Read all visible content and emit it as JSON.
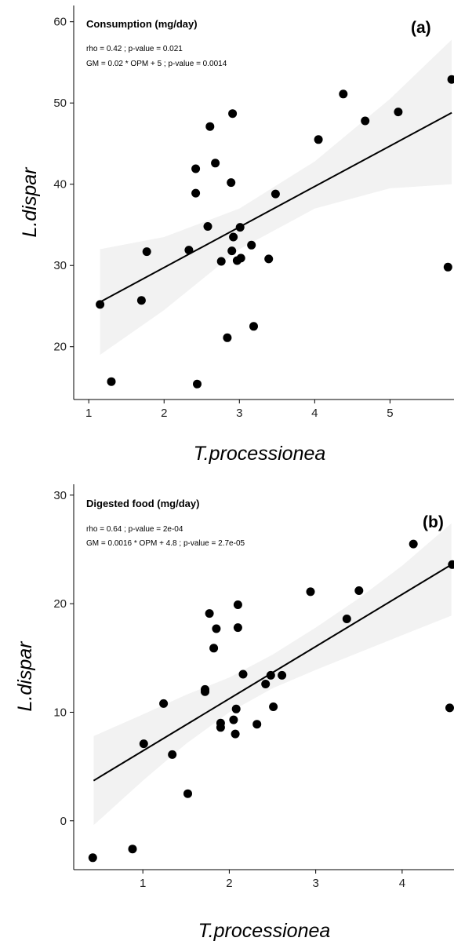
{
  "chart_data": [
    {
      "type": "scatter",
      "title": "Consumption (mg/day)",
      "annotations": [
        "rho = 0.42 ; p-value = 0.021",
        "GM = 0.02 * OPM + 5 ; p-value = 0.0014"
      ],
      "panel_tag": "(a)",
      "xlabel": "T.processionea",
      "ylabel": "L.dispar",
      "xlim": [
        0.8,
        5.85
      ],
      "ylim": [
        13.5,
        62
      ],
      "xticks": [
        1,
        2,
        3,
        4,
        5,
        6
      ],
      "yticks": [
        20,
        30,
        40,
        50,
        60
      ],
      "grid": false,
      "smooth": "linear fit with confidence band",
      "fit_line": {
        "x": [
          1.15,
          5.82
        ],
        "y": [
          25.5,
          48.8
        ]
      },
      "band": {
        "x": [
          1.15,
          2.0,
          3.0,
          4.0,
          5.0,
          5.82
        ],
        "upper": [
          32.0,
          33.5,
          37.0,
          42.8,
          50.5,
          57.8
        ],
        "lower": [
          19.0,
          24.5,
          32.0,
          37.0,
          39.5,
          40.0
        ]
      },
      "points": [
        {
          "x": 1.15,
          "y": 25.2
        },
        {
          "x": 1.3,
          "y": 15.7
        },
        {
          "x": 1.7,
          "y": 25.7
        },
        {
          "x": 1.77,
          "y": 31.7
        },
        {
          "x": 2.33,
          "y": 31.9
        },
        {
          "x": 2.42,
          "y": 41.9
        },
        {
          "x": 2.42,
          "y": 38.9
        },
        {
          "x": 2.44,
          "y": 15.4
        },
        {
          "x": 2.58,
          "y": 34.8
        },
        {
          "x": 2.61,
          "y": 47.1
        },
        {
          "x": 2.68,
          "y": 42.6
        },
        {
          "x": 2.76,
          "y": 30.5
        },
        {
          "x": 2.84,
          "y": 21.1
        },
        {
          "x": 2.89,
          "y": 40.2
        },
        {
          "x": 2.9,
          "y": 31.8
        },
        {
          "x": 2.91,
          "y": 48.7
        },
        {
          "x": 2.92,
          "y": 33.5
        },
        {
          "x": 2.97,
          "y": 30.6
        },
        {
          "x": 3.01,
          "y": 34.7
        },
        {
          "x": 3.02,
          "y": 30.9
        },
        {
          "x": 3.16,
          "y": 32.5
        },
        {
          "x": 3.19,
          "y": 22.5
        },
        {
          "x": 3.39,
          "y": 30.8
        },
        {
          "x": 3.48,
          "y": 38.8
        },
        {
          "x": 4.05,
          "y": 45.5
        },
        {
          "x": 4.38,
          "y": 51.1
        },
        {
          "x": 4.67,
          "y": 47.8
        },
        {
          "x": 5.11,
          "y": 48.9
        },
        {
          "x": 5.77,
          "y": 29.8
        },
        {
          "x": 5.82,
          "y": 52.9
        }
      ],
      "colors": {
        "points": "#000000",
        "line": "#000000",
        "band": "#f2f2f2"
      }
    },
    {
      "type": "scatter",
      "title": "Digested food (mg/day)",
      "annotations": [
        "rho = 0.64 ; p-value = 2e-04",
        "GM = 0.0016 * OPM + 4.8 ; p-value = 2.7e-05"
      ],
      "panel_tag": "(b)",
      "xlabel": "T.processionea",
      "ylabel": "L.dispar",
      "xlim": [
        0.2,
        4.6
      ],
      "ylim": [
        -4.5,
        31
      ],
      "xticks": [
        1,
        2,
        3,
        4
      ],
      "yticks": [
        0,
        10,
        20,
        30
      ],
      "grid": false,
      "smooth": "linear fit with confidence band",
      "fit_line": {
        "x": [
          0.43,
          4.57
        ],
        "y": [
          3.7,
          23.6
        ]
      },
      "band": {
        "x": [
          0.43,
          1.0,
          1.5,
          2.0,
          2.5,
          3.0,
          3.5,
          4.0,
          4.57
        ],
        "upper": [
          7.8,
          9.8,
          11.6,
          13.2,
          15.3,
          17.8,
          20.5,
          23.5,
          27.4
        ],
        "lower": [
          -0.4,
          3.7,
          7.1,
          10.0,
          12.2,
          13.9,
          15.5,
          17.1,
          18.9
        ]
      },
      "points": [
        {
          "x": 0.42,
          "y": -3.4
        },
        {
          "x": 0.88,
          "y": -2.6
        },
        {
          "x": 1.01,
          "y": 7.1
        },
        {
          "x": 1.24,
          "y": 10.8
        },
        {
          "x": 1.34,
          "y": 6.1
        },
        {
          "x": 1.52,
          "y": 2.5
        },
        {
          "x": 1.72,
          "y": 11.9
        },
        {
          "x": 1.72,
          "y": 12.1
        },
        {
          "x": 1.77,
          "y": 19.1
        },
        {
          "x": 1.82,
          "y": 15.9
        },
        {
          "x": 1.85,
          "y": 17.7
        },
        {
          "x": 1.9,
          "y": 9.0
        },
        {
          "x": 1.9,
          "y": 8.6
        },
        {
          "x": 2.05,
          "y": 9.3
        },
        {
          "x": 2.07,
          "y": 8.0
        },
        {
          "x": 2.08,
          "y": 10.3
        },
        {
          "x": 2.1,
          "y": 19.9
        },
        {
          "x": 2.1,
          "y": 17.8
        },
        {
          "x": 2.16,
          "y": 13.5
        },
        {
          "x": 2.32,
          "y": 8.9
        },
        {
          "x": 2.42,
          "y": 12.6
        },
        {
          "x": 2.48,
          "y": 13.4
        },
        {
          "x": 2.51,
          "y": 10.5
        },
        {
          "x": 2.61,
          "y": 13.4
        },
        {
          "x": 2.94,
          "y": 21.1
        },
        {
          "x": 3.36,
          "y": 18.6
        },
        {
          "x": 3.5,
          "y": 21.2
        },
        {
          "x": 4.13,
          "y": 25.5
        },
        {
          "x": 4.55,
          "y": 10.4
        },
        {
          "x": 4.58,
          "y": 23.6
        }
      ],
      "colors": {
        "points": "#000000",
        "line": "#000000",
        "band": "#f2f2f2"
      }
    }
  ]
}
